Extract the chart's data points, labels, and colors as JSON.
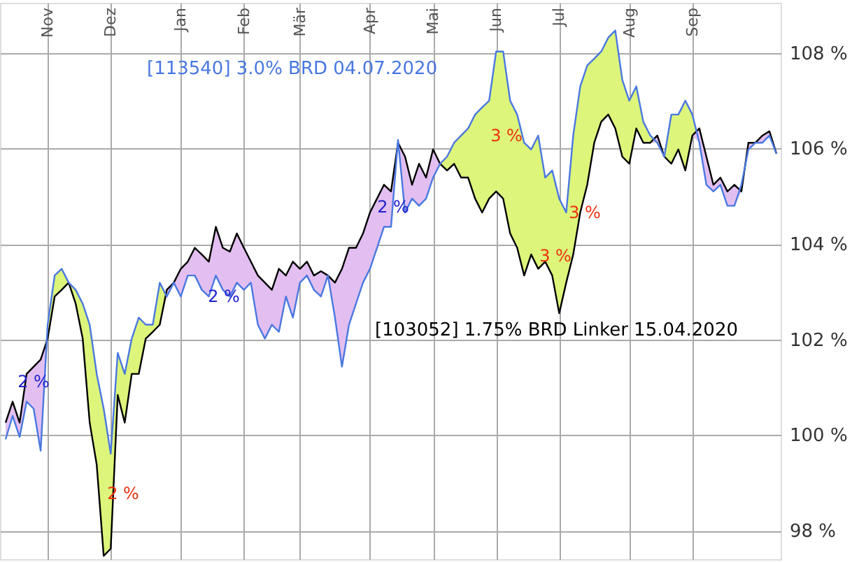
{
  "chart_data": {
    "type": "line",
    "categories": [
      null,
      null,
      null,
      null,
      null,
      null,
      "Nov",
      null,
      null,
      null,
      null,
      null,
      null,
      null,
      null,
      "Dez",
      null,
      null,
      null,
      null,
      null,
      null,
      null,
      null,
      null,
      "Jan",
      null,
      null,
      null,
      null,
      null,
      null,
      null,
      null,
      "Feb",
      null,
      null,
      null,
      null,
      null,
      null,
      null,
      "Mär",
      null,
      null,
      null,
      null,
      null,
      null,
      null,
      null,
      null,
      "Apr",
      null,
      null,
      null,
      null,
      null,
      null,
      null,
      null,
      "Mai",
      null,
      null,
      null,
      null,
      null,
      null,
      null,
      null,
      "Jun",
      null,
      null,
      null,
      null,
      null,
      null,
      null,
      null,
      "Jul",
      null,
      null,
      null,
      null,
      null,
      null,
      null,
      null,
      null,
      "Aug",
      null,
      null,
      null,
      null,
      null,
      null,
      null,
      null,
      "Sep",
      null,
      null,
      null,
      null,
      null,
      null,
      null,
      null,
      null,
      null,
      null,
      null
    ],
    "series": [
      {
        "name": "[113540] 3.0% BRD 04.07.2020",
        "color": "#4a78e0",
        "values": [
          99.91,
          100.4,
          99.96,
          100.7,
          100.55,
          99.67,
          102.31,
          103.34,
          103.48,
          103.19,
          103.04,
          102.75,
          102.31,
          101.28,
          100.55,
          99.61,
          101.72,
          101.28,
          102.02,
          102.46,
          102.31,
          102.31,
          103.19,
          102.9,
          103.19,
          102.9,
          103.34,
          103.34,
          103.04,
          102.9,
          103.34,
          103.04,
          102.9,
          103.19,
          103.04,
          103.19,
          102.31,
          102.02,
          102.31,
          102.16,
          102.9,
          102.46,
          103.19,
          103.34,
          103.04,
          102.9,
          103.34,
          102.46,
          101.43,
          102.31,
          102.75,
          103.19,
          103.48,
          103.92,
          104.36,
          104.36,
          106.18,
          104.66,
          104.95,
          104.8,
          104.95,
          105.39,
          105.68,
          105.83,
          106.12,
          106.27,
          106.42,
          106.71,
          106.86,
          107.0,
          108.03,
          108.03,
          107.0,
          106.71,
          106.12,
          105.98,
          106.27,
          105.39,
          105.54,
          104.95,
          104.66,
          106.27,
          107.3,
          107.74,
          107.88,
          108.03,
          108.32,
          108.47,
          107.44,
          107.0,
          107.3,
          106.56,
          106.27,
          106.12,
          105.83,
          106.71,
          106.71,
          107.0,
          106.71,
          106.12,
          105.24,
          105.1,
          105.24,
          104.8,
          104.8,
          105.24,
          105.98,
          106.12,
          106.12,
          106.27,
          105.89
        ],
        "lower": [
          99.91,
          100.4,
          99.96,
          100.7,
          100.55,
          99.67,
          102.02,
          102.9,
          103.04,
          103.19,
          102.75,
          102.02,
          100.26,
          99.38,
          97.47,
          97.62,
          100.84,
          100.26,
          101.28,
          101.28,
          102.02,
          102.16,
          102.31,
          102.9,
          103.19,
          102.9,
          103.34,
          103.34,
          103.04,
          102.9,
          103.34,
          103.04,
          102.9,
          103.19,
          103.04,
          103.19,
          102.31,
          102.02,
          102.31,
          102.16,
          102.9,
          102.46,
          103.19,
          103.34,
          103.04,
          102.9,
          103.34,
          102.46,
          101.43,
          102.31,
          102.75,
          103.19,
          103.48,
          103.92,
          104.36,
          104.36,
          106.12,
          104.66,
          104.95,
          104.8,
          104.95,
          105.39,
          105.68,
          105.54,
          105.68,
          105.39,
          105.39,
          104.95,
          104.66,
          104.95,
          105.1,
          104.95,
          104.22,
          103.92,
          103.34,
          103.78,
          103.48,
          103.63,
          103.34,
          102.55,
          103.19,
          103.78,
          104.66,
          105.24,
          106.12,
          106.56,
          106.71,
          106.42,
          105.83,
          105.68,
          106.42,
          106.12,
          106.12,
          106.12,
          105.83,
          105.68,
          105.98,
          105.54,
          106.27,
          106.12,
          105.24,
          105.1,
          105.24,
          104.8,
          104.8,
          105.1,
          105.98,
          106.12,
          106.12,
          106.27,
          105.89
        ],
        "upper": [
          99.91,
          100.4,
          99.96,
          100.7,
          100.55,
          99.67,
          102.31,
          103.34,
          103.48,
          103.19,
          103.04,
          102.75,
          102.31,
          101.28,
          100.55,
          99.61,
          101.72,
          101.28,
          102.02,
          102.46,
          102.31,
          102.31,
          103.19,
          102.9,
          103.19,
          102.9,
          103.34,
          103.34,
          103.04,
          102.9,
          103.34,
          103.04,
          102.9,
          103.19,
          103.04,
          103.19,
          102.31,
          102.02,
          102.31,
          102.16,
          102.9,
          102.46,
          103.19,
          103.34,
          103.04,
          102.9,
          103.34,
          102.46,
          101.43,
          102.31,
          102.75,
          103.19,
          103.48,
          103.92,
          104.36,
          104.36,
          106.18,
          104.66,
          104.95,
          104.8,
          104.95,
          105.39,
          105.68,
          105.83,
          106.12,
          106.27,
          106.42,
          106.71,
          106.86,
          107.0,
          108.03,
          108.03,
          107.0,
          106.71,
          106.12,
          105.98,
          106.27,
          105.39,
          105.54,
          104.95,
          104.66,
          106.27,
          107.3,
          107.74,
          107.88,
          108.03,
          108.32,
          108.47,
          107.44,
          107.0,
          107.3,
          106.56,
          106.27,
          106.12,
          105.83,
          106.71,
          106.71,
          107.0,
          106.71,
          106.12,
          105.24,
          105.1,
          105.24,
          104.8,
          104.8,
          105.24,
          105.98,
          106.12,
          106.12,
          106.27,
          105.89
        ]
      },
      {
        "name": "[103052] 1.75% BRD Linker 15.04.2020",
        "color": "#000000",
        "values": [
          100.26,
          100.7,
          100.26,
          101.28,
          101.43,
          101.58,
          102.02,
          102.9,
          103.04,
          103.19,
          102.75,
          102.02,
          100.26,
          99.38,
          97.47,
          97.62,
          100.84,
          100.26,
          101.28,
          101.28,
          102.02,
          102.16,
          102.31,
          103.04,
          103.19,
          103.48,
          103.63,
          103.92,
          103.78,
          103.63,
          104.36,
          103.92,
          103.84,
          104.22,
          103.92,
          103.63,
          103.34,
          103.19,
          103.04,
          103.48,
          103.34,
          103.63,
          103.48,
          103.63,
          103.34,
          103.43,
          103.34,
          103.19,
          103.48,
          103.92,
          103.92,
          104.22,
          104.66,
          104.95,
          105.24,
          105.1,
          106.12,
          105.83,
          105.24,
          105.68,
          105.39,
          105.98,
          105.68,
          105.54,
          105.68,
          105.39,
          105.39,
          104.95,
          104.66,
          104.95,
          105.1,
          104.95,
          104.22,
          103.92,
          103.34,
          103.78,
          103.48,
          103.63,
          103.34,
          102.55,
          103.19,
          103.78,
          104.66,
          105.24,
          106.12,
          106.56,
          106.71,
          106.42,
          105.83,
          105.68,
          106.42,
          106.12,
          106.12,
          106.27,
          105.83,
          105.68,
          105.98,
          105.54,
          106.27,
          106.42,
          105.83,
          105.24,
          105.39,
          105.1,
          105.24,
          105.1,
          106.12,
          106.12,
          106.27,
          106.36,
          105.89
        ],
        "lower": [
          99.91,
          100.4,
          99.96,
          100.7,
          100.55,
          99.67,
          102.02,
          102.9,
          103.04,
          103.19,
          102.75,
          102.02,
          100.26,
          99.38,
          97.47,
          97.62,
          100.84,
          100.26,
          101.28,
          101.28,
          102.02,
          102.16,
          102.31,
          102.9,
          103.19,
          102.9,
          103.34,
          103.34,
          103.04,
          102.9,
          103.34,
          103.04,
          102.9,
          103.19,
          103.04,
          103.19,
          102.31,
          102.02,
          102.31,
          102.16,
          102.9,
          102.46,
          103.19,
          103.34,
          103.04,
          102.9,
          103.34,
          102.46,
          101.43,
          102.31,
          102.75,
          103.19,
          103.48,
          103.92,
          104.36,
          104.36,
          106.12,
          104.66,
          104.95,
          104.8,
          104.95,
          105.39,
          105.68,
          105.54,
          105.68,
          105.39,
          105.39,
          104.95,
          104.66,
          104.95,
          105.1,
          104.95,
          104.22,
          103.92,
          103.34,
          103.78,
          103.48,
          103.63,
          103.34,
          102.55,
          103.19,
          103.78,
          104.66,
          105.24,
          106.12,
          106.56,
          106.71,
          106.42,
          105.83,
          105.68,
          106.42,
          106.12,
          106.12,
          106.12,
          105.83,
          105.68,
          105.98,
          105.54,
          106.27,
          106.12,
          105.24,
          105.1,
          105.24,
          104.8,
          104.8,
          105.1,
          105.98,
          106.12,
          106.12,
          106.27,
          105.89
        ],
        "upper": [
          100.26,
          100.7,
          100.26,
          101.28,
          101.43,
          101.58,
          102.02,
          102.9,
          103.04,
          103.19,
          102.75,
          102.02,
          100.26,
          99.38,
          97.47,
          97.62,
          100.84,
          100.26,
          101.28,
          101.28,
          102.02,
          102.16,
          102.31,
          103.04,
          103.19,
          103.48,
          103.63,
          103.92,
          103.78,
          103.63,
          104.36,
          103.92,
          103.84,
          104.22,
          103.92,
          103.63,
          103.34,
          103.19,
          103.04,
          103.48,
          103.34,
          103.63,
          103.48,
          103.63,
          103.34,
          103.43,
          103.34,
          103.19,
          103.48,
          103.92,
          103.92,
          104.22,
          104.66,
          104.95,
          105.24,
          105.1,
          106.12,
          105.83,
          105.24,
          105.68,
          105.39,
          105.98,
          105.68,
          105.54,
          105.68,
          105.39,
          105.39,
          104.95,
          104.66,
          104.95,
          105.1,
          104.95,
          104.22,
          103.92,
          103.34,
          103.78,
          103.48,
          103.63,
          103.34,
          102.55,
          103.19,
          103.78,
          104.66,
          105.24,
          106.12,
          106.56,
          106.71,
          106.42,
          105.83,
          105.68,
          106.42,
          106.12,
          106.12,
          106.27,
          105.83,
          105.68,
          105.98,
          105.54,
          106.27,
          106.42,
          105.83,
          105.24,
          105.39,
          105.1,
          105.24,
          105.1,
          106.12,
          106.12,
          106.27,
          106.36,
          105.89
        ]
      }
    ],
    "ylim": [
      97.4,
      109.05
    ],
    "yticks": [
      {
        "value": 98,
        "label": "98 %"
      },
      {
        "value": 100,
        "label": "100 %"
      },
      {
        "value": 102,
        "label": "102 %"
      },
      {
        "value": 104,
        "label": "104 %"
      },
      {
        "value": 106,
        "label": "106 %"
      },
      {
        "value": 108,
        "label": "108 %"
      }
    ],
    "grid": true,
    "annotations": [
      "2 %",
      "2 %",
      "2 %",
      "2 %",
      "3 %",
      "3 %",
      "3 %"
    ]
  }
}
